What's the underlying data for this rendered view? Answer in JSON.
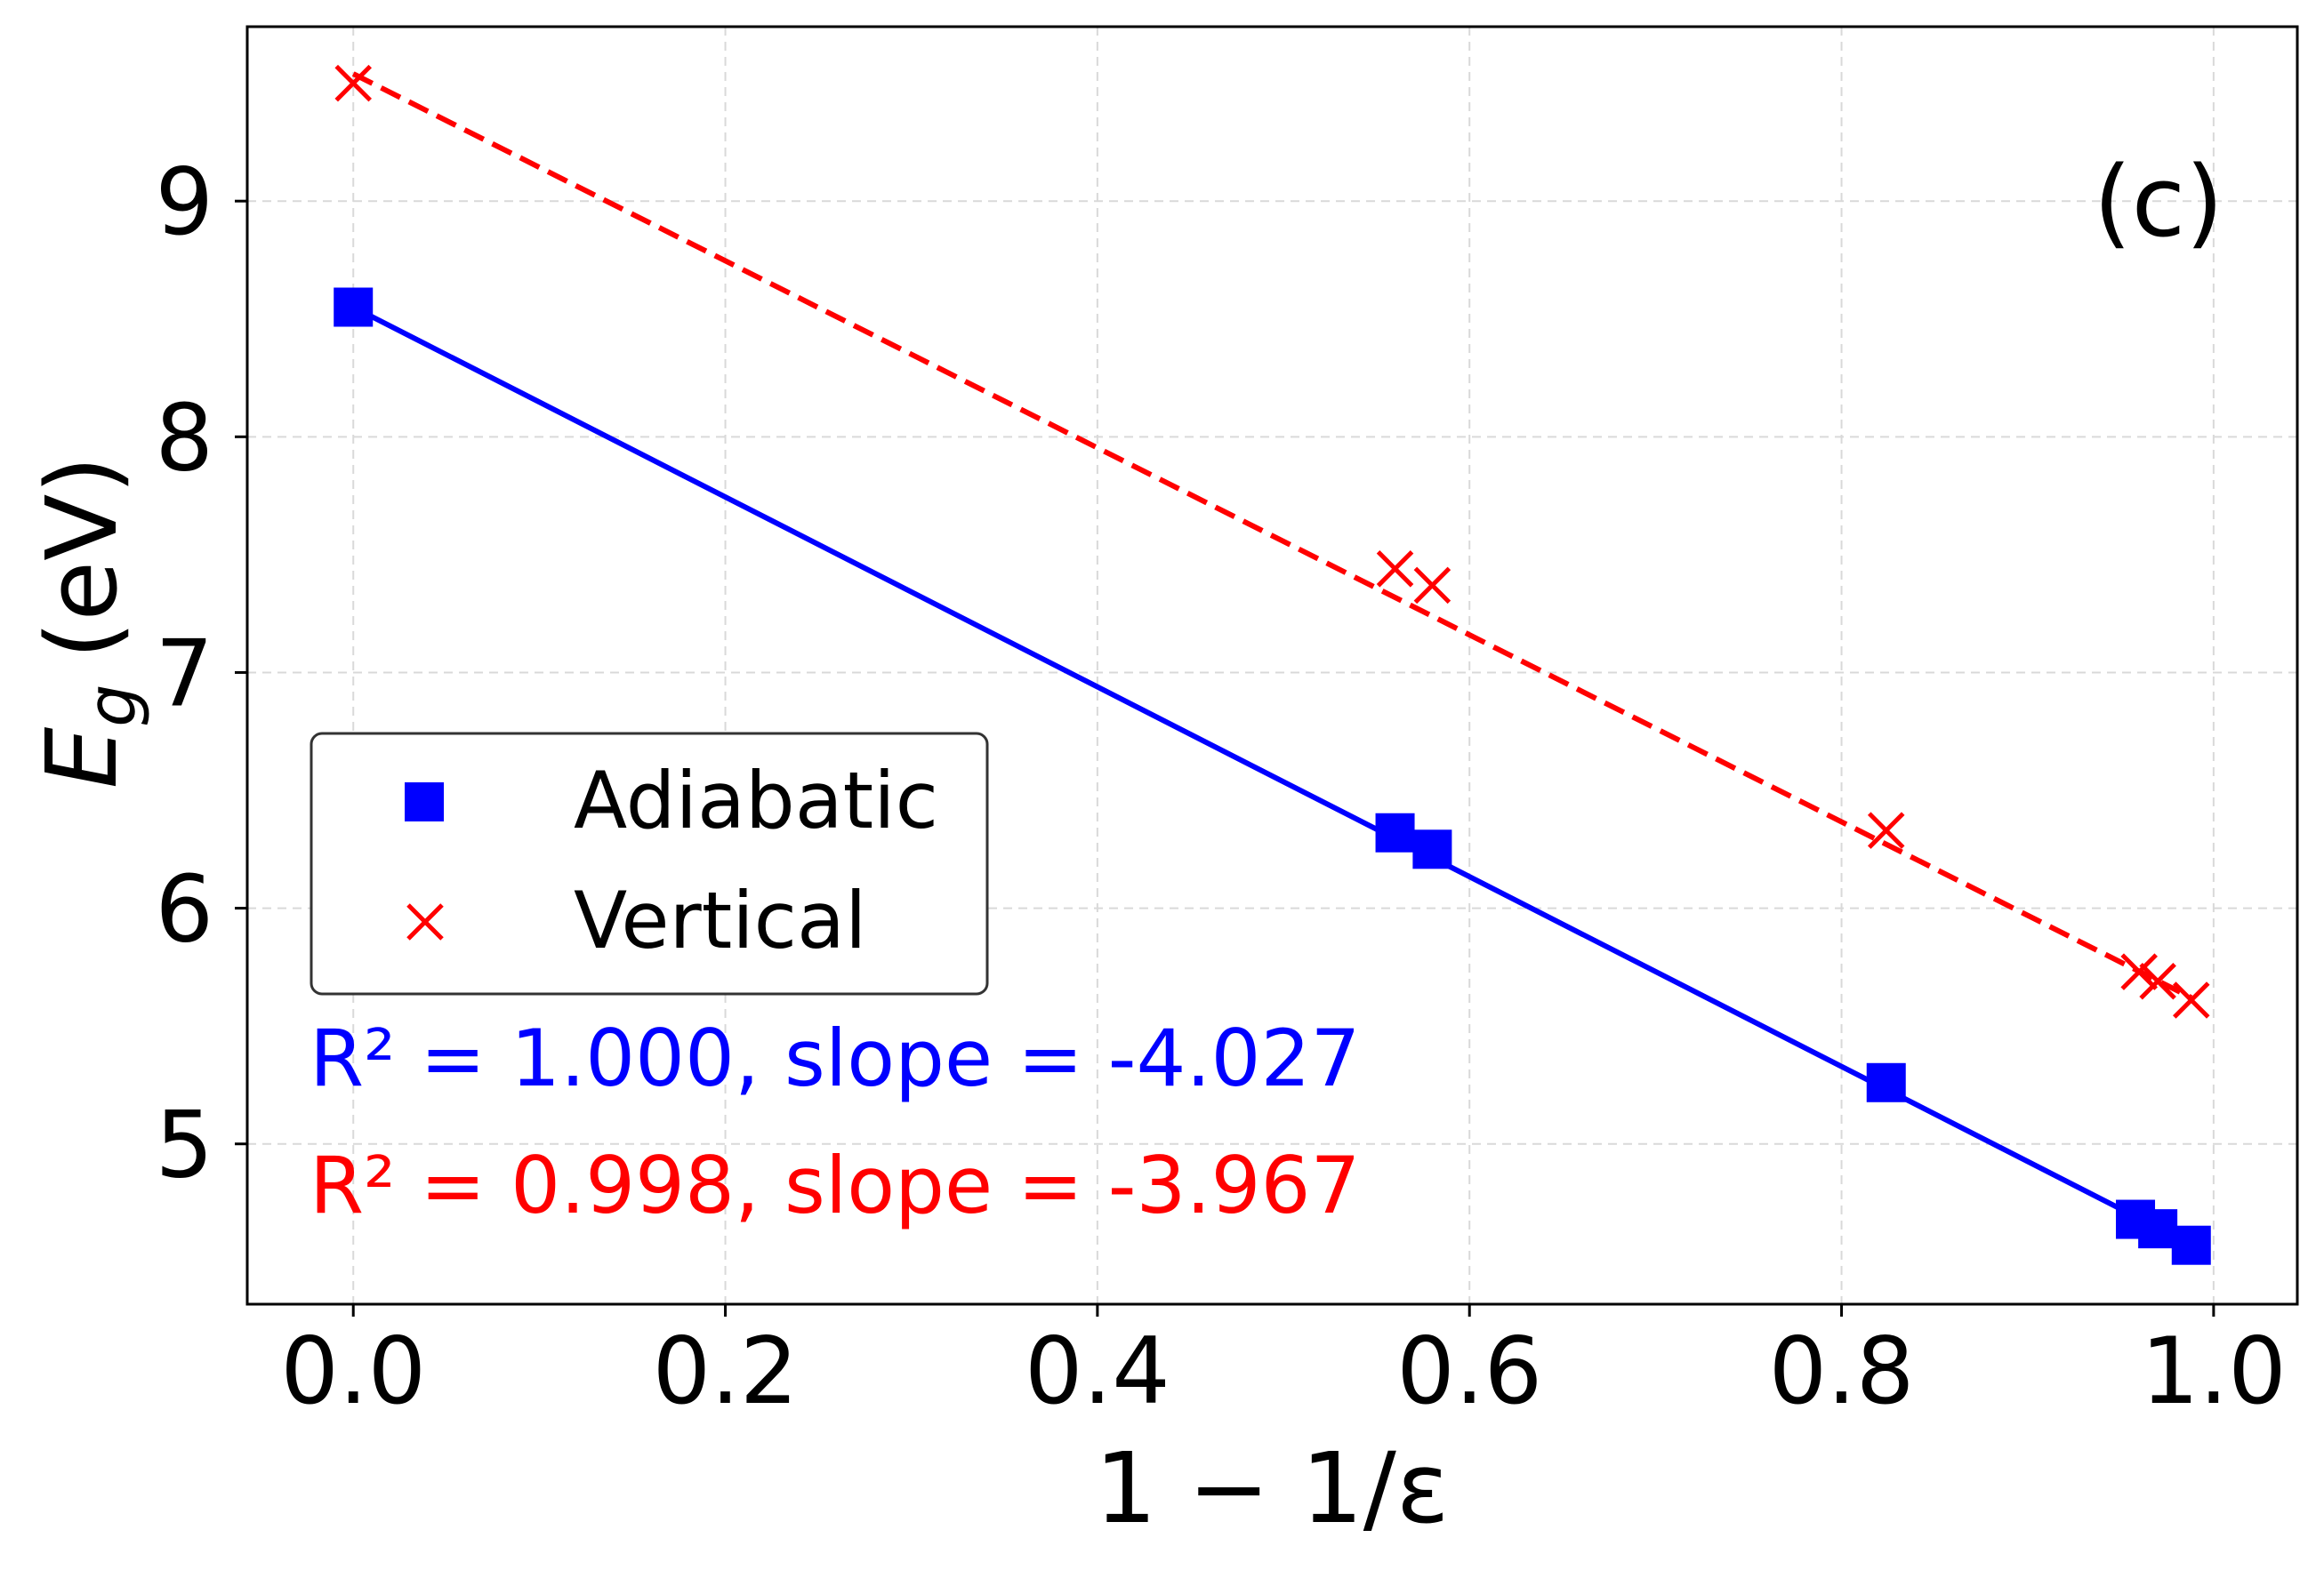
{
  "chart_data": {
    "type": "scatter",
    "panel_label": "(c)",
    "xlabel": "1 − 1/ε",
    "ylabel_main": "E",
    "ylabel_sub": "g",
    "ylabel_unit": "(eV)",
    "xlim": [
      -0.057,
      1.045
    ],
    "ylim": [
      4.32,
      9.74
    ],
    "grid": true,
    "x_ticks": [
      0.0,
      0.2,
      0.4,
      0.6,
      0.8,
      1.0
    ],
    "x_tick_labels": [
      "0.0",
      "0.2",
      "0.4",
      "0.6",
      "0.8",
      "1.0"
    ],
    "y_ticks": [
      5,
      6,
      7,
      8,
      9
    ],
    "y_tick_labels": [
      "5",
      "6",
      "7",
      "8",
      "9"
    ],
    "legend": {
      "placement": "center-left",
      "entries": [
        "Adiabatic",
        "Vertical"
      ]
    },
    "series": [
      {
        "name": "Adiabatic",
        "marker": "square",
        "color": "#0000ff",
        "line_style": "solid",
        "x": [
          0.0,
          0.56,
          0.58,
          0.824,
          0.958,
          0.97,
          0.988
        ],
        "y": [
          8.55,
          6.32,
          6.25,
          5.26,
          4.68,
          4.64,
          4.57
        ],
        "fit": {
          "slope": -4.027,
          "intercept": 8.55,
          "r2": "1.000",
          "x_range": [
            0.0,
            0.988
          ]
        },
        "annotation": "R² = 1.000, slope = -4.027"
      },
      {
        "name": "Vertical",
        "marker": "x",
        "color": "#ff0000",
        "line_style": "dashed",
        "x": [
          0.0,
          0.56,
          0.58,
          0.824,
          0.96,
          0.97,
          0.988
        ],
        "y": [
          9.5,
          7.44,
          7.37,
          6.33,
          5.73,
          5.69,
          5.61
        ],
        "fit": {
          "slope": -3.967,
          "intercept": 9.54,
          "r2": "0.998",
          "x_range": [
            0.0,
            0.988
          ]
        },
        "annotation": "R² = 0.998, slope = -3.967"
      }
    ]
  }
}
